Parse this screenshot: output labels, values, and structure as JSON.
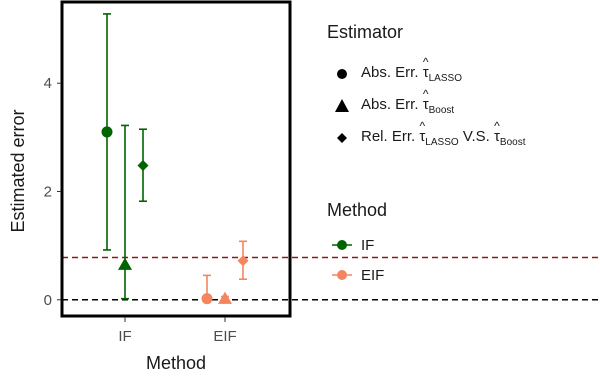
{
  "chart_data": {
    "type": "scatter",
    "xlabel": "Method",
    "ylabel": "Estimated error",
    "categories": [
      "IF",
      "EIF"
    ],
    "y_ticks": [
      0,
      2,
      4
    ],
    "ylim": [
      -0.3,
      5.5
    ],
    "hlines": [
      {
        "y": 0,
        "color": "#000000",
        "style": "dashed"
      },
      {
        "y": 0.78,
        "color": "#8b1a1a",
        "style": "dashed"
      }
    ],
    "points": [
      {
        "method": "IF",
        "estimator": "abs_lasso",
        "y": 3.1,
        "lower": 0.92,
        "upper": 5.28
      },
      {
        "method": "IF",
        "estimator": "abs_boost",
        "y": 0.65,
        "lower": 0.02,
        "upper": 3.22
      },
      {
        "method": "IF",
        "estimator": "rel",
        "y": 2.48,
        "lower": 1.82,
        "upper": 3.15
      },
      {
        "method": "EIF",
        "estimator": "abs_lasso",
        "y": 0.02,
        "lower": 0.0,
        "upper": 0.45
      },
      {
        "method": "EIF",
        "estimator": "abs_boost",
        "y": 0.02,
        "lower": 0.0,
        "upper": 0.06
      },
      {
        "method": "EIF",
        "estimator": "rel",
        "y": 0.72,
        "lower": 0.38,
        "upper": 1.08
      }
    ],
    "legend_placement": "right"
  },
  "legend": {
    "estimator_title": "Estimator",
    "estimator_items": [
      {
        "key": "abs_lasso",
        "shape": "circle",
        "prefix": "Abs. Err. ",
        "sym": "τ",
        "sub": "LASSO",
        "middle": "",
        "sym2": "",
        "sub2": ""
      },
      {
        "key": "abs_boost",
        "shape": "triangle",
        "prefix": "Abs. Err. ",
        "sym": "τ",
        "sub": "Boost",
        "middle": "",
        "sym2": "",
        "sub2": ""
      },
      {
        "key": "rel",
        "shape": "diamond",
        "prefix": "Rel. Err. ",
        "sym": "τ",
        "sub": "LASSO",
        "middle": " V.S. ",
        "sym2": "τ",
        "sub2": "Boost"
      }
    ],
    "method_title": "Method",
    "method_items": [
      {
        "label": "IF",
        "color": "#006400"
      },
      {
        "label": "EIF",
        "color": "#f4855e"
      }
    ]
  },
  "colors": {
    "IF": "#006400",
    "EIF": "#f4855e",
    "refline": "#8b1a1a"
  }
}
